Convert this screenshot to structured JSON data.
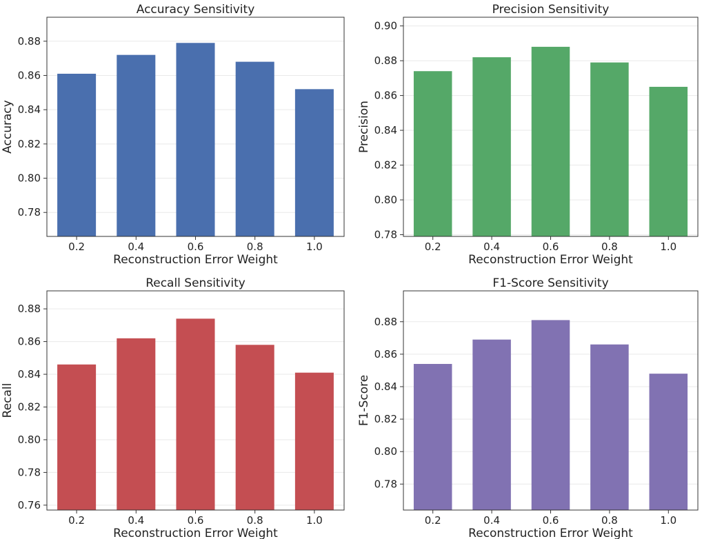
{
  "chart_data": [
    {
      "type": "bar",
      "title": "Accuracy Sensitivity",
      "xlabel": "Reconstruction Error Weight",
      "ylabel": "Accuracy",
      "categories": [
        "0.2",
        "0.4",
        "0.6",
        "0.8",
        "1.0"
      ],
      "values": [
        0.861,
        0.872,
        0.879,
        0.868,
        0.852
      ],
      "ylim": [
        0.766,
        0.894
      ],
      "yticks": [
        "0.78",
        "0.80",
        "0.82",
        "0.84",
        "0.86",
        "0.88"
      ],
      "color": "#4a6fae",
      "grid": true
    },
    {
      "type": "bar",
      "title": "Precision Sensitivity",
      "xlabel": "Reconstruction Error Weight",
      "ylabel": "Precision",
      "categories": [
        "0.2",
        "0.4",
        "0.6",
        "0.8",
        "1.0"
      ],
      "values": [
        0.874,
        0.882,
        0.888,
        0.879,
        0.865
      ],
      "ylim": [
        0.779,
        0.905
      ],
      "yticks": [
        "0.78",
        "0.80",
        "0.82",
        "0.84",
        "0.86",
        "0.88",
        "0.90"
      ],
      "color": "#55a868",
      "grid": true
    },
    {
      "type": "bar",
      "title": "Recall Sensitivity",
      "xlabel": "Reconstruction Error Weight",
      "ylabel": "Recall",
      "categories": [
        "0.2",
        "0.4",
        "0.6",
        "0.8",
        "1.0"
      ],
      "values": [
        0.846,
        0.862,
        0.874,
        0.858,
        0.841
      ],
      "ylim": [
        0.757,
        0.891
      ],
      "yticks": [
        "0.76",
        "0.78",
        "0.80",
        "0.82",
        "0.84",
        "0.86",
        "0.88"
      ],
      "color": "#c44e52",
      "grid": true
    },
    {
      "type": "bar",
      "title": "F1-Score Sensitivity",
      "xlabel": "Reconstruction Error Weight",
      "ylabel": "F1-Score",
      "categories": [
        "0.2",
        "0.4",
        "0.6",
        "0.8",
        "1.0"
      ],
      "values": [
        0.854,
        0.869,
        0.881,
        0.866,
        0.848
      ],
      "ylim": [
        0.764,
        0.899
      ],
      "yticks": [
        "0.78",
        "0.80",
        "0.82",
        "0.84",
        "0.86",
        "0.88"
      ],
      "color": "#8172b2",
      "grid": true
    }
  ]
}
